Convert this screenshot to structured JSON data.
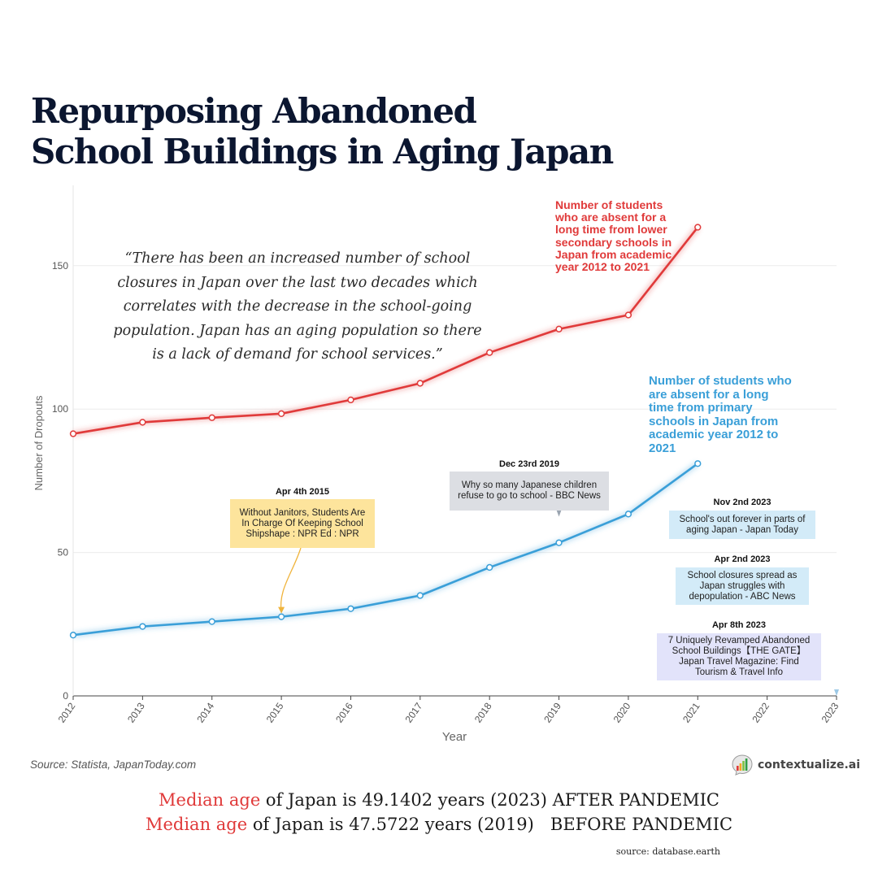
{
  "title_lines": [
    "Repurposing Abandoned",
    "School Buildings in Aging Japan"
  ],
  "quote": "“There has been an increased number of school closures in Japan over the last two decades which correlates with the decrease in the school-going population. Japan has an aging population so there is a lack of demand for school services.”",
  "colors": {
    "lower_secondary": "#e03a3a",
    "primary": "#3a9fd8",
    "annotation_yellow": "#fde49c",
    "annotation_grey": "#dcdee3",
    "annotation_blue": "#d3ebf8",
    "annotation_lavender": "#e2e3fa"
  },
  "chart_data": {
    "type": "line",
    "xlabel": "Year",
    "ylabel": "Number of Dropouts",
    "x_ticks": [
      "2012",
      "2013",
      "2014",
      "2015",
      "2016",
      "2017",
      "2018",
      "2019",
      "2020",
      "2021",
      "2022",
      "2023"
    ],
    "xlim": [
      2012,
      2023
    ],
    "ylim": [
      0,
      178
    ],
    "y_ticks": [
      0,
      50,
      100,
      150
    ],
    "grid": true,
    "series": [
      {
        "name": "Number of students who are absent for a long time from lower secondary schools in Japan from academic year 2012 to 2021",
        "x": [
          2012,
          2013,
          2014,
          2015,
          2016,
          2017,
          2018,
          2019,
          2020,
          2021
        ],
        "values": [
          91.4,
          95.4,
          97.0,
          98.4,
          103.2,
          109.0,
          119.7,
          127.9,
          132.8,
          163.4
        ]
      },
      {
        "name": "Number of students who are absent for a long time from primary schools in Japan from academic year 2012 to 2021",
        "x": [
          2012,
          2013,
          2014,
          2015,
          2016,
          2017,
          2018,
          2019,
          2020,
          2021
        ],
        "values": [
          21.2,
          24.2,
          25.9,
          27.6,
          30.4,
          35.0,
          44.8,
          53.4,
          63.4,
          81.0
        ]
      }
    ],
    "annotations": [
      {
        "date": "Apr 4th 2015",
        "text": "Without Janitors, Students Are In Charge Of Keeping School Shipshape : NPR Ed : NPR",
        "x": 2015,
        "y": 27.6,
        "color": "#fde49c",
        "arrow": "#f0b43c"
      },
      {
        "date": "Dec 23rd 2019",
        "text": "Why so many Japanese children refuse to go to school - BBC News",
        "x": 2019,
        "y": 62.5,
        "color": "#dcdee3",
        "arrow": "#9aa4b0"
      },
      {
        "date": "Nov 2nd 2023",
        "text": "School's out forever in parts of aging Japan - Japan Today",
        "color": "#d3ebf8"
      },
      {
        "date": "Apr 2nd 2023",
        "text": "School closures spread as Japan struggles with depopulation - ABC News",
        "color": "#d3ebf8"
      },
      {
        "date": "Apr 8th 2023",
        "text": "7 Uniquely Revamped Abandoned School Buildings【THE GATE】Japan Travel Magazine: Find Tourism & Travel Info",
        "color": "#e2e3fa"
      }
    ]
  },
  "source_left": "Source: Statista, JapanToday.com",
  "brand": "contextualize.ai",
  "median": [
    {
      "label": "Median age",
      "rest": " of Japan is 49.1402 years (2023) AFTER PANDEMIC"
    },
    {
      "label": "Median age",
      "rest": " of Japan is 47.5722 years (2019)   BEFORE PANDEMIC"
    }
  ],
  "source_bottom": "source: database.earth"
}
